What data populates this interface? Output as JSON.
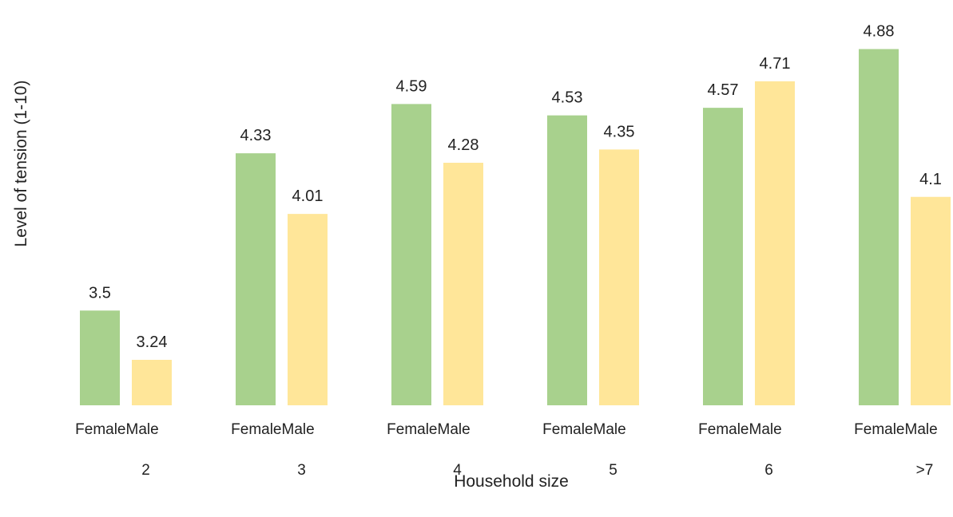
{
  "chart_data": {
    "type": "bar",
    "title": "",
    "xlabel": "Household size",
    "ylabel": "Level of tension (1-10)",
    "categories": [
      "2",
      "3",
      "4",
      "5",
      "6",
      ">7"
    ],
    "series": [
      {
        "name": "Female",
        "color": "#a8d18d",
        "values": [
          3.5,
          4.33,
          4.59,
          4.53,
          4.57,
          4.88
        ]
      },
      {
        "name": "Male",
        "color": "#ffe699",
        "values": [
          3.24,
          4.01,
          4.28,
          4.35,
          4.71,
          4.1
        ]
      }
    ],
    "data_labels": true,
    "grid": false,
    "legend": "none"
  }
}
